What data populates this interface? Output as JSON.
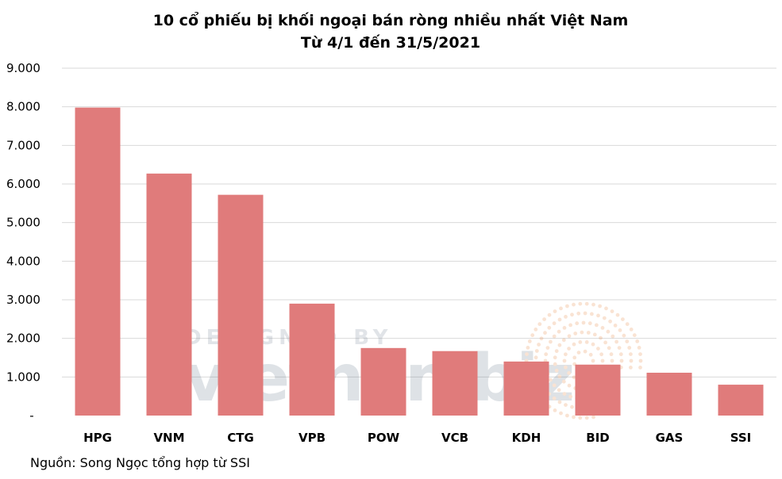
{
  "chart_data": {
    "type": "bar",
    "title": "10 cổ phiếu bị khối ngoại bán ròng nhiều nhất Việt Nam",
    "subtitle": "Từ 4/1 đến 31/5/2021",
    "categories": [
      "HPG",
      "VNM",
      "CTG",
      "VPB",
      "POW",
      "VCB",
      "KDH",
      "BID",
      "GAS",
      "SSI"
    ],
    "values": [
      7980,
      6270,
      5720,
      2900,
      1750,
      1670,
      1400,
      1320,
      1110,
      800
    ],
    "ylim": [
      0,
      9000
    ],
    "yticks": [
      0,
      1000,
      2000,
      3000,
      4000,
      5000,
      6000,
      7000,
      8000,
      9000
    ],
    "ytick_labels": [
      "-",
      "1.000",
      "2.000",
      "3.000",
      "4.000",
      "5.000",
      "6.000",
      "7.000",
      "8.000",
      "9.000"
    ],
    "grid": true,
    "bar_color": "#e07b7b",
    "xlabel": "",
    "ylabel": ""
  },
  "source": "Nguồn: Song Ngọc tổng hợp từ SSI",
  "watermark": {
    "line1": "DESIGNED BY",
    "line2": "vietnambiz"
  }
}
